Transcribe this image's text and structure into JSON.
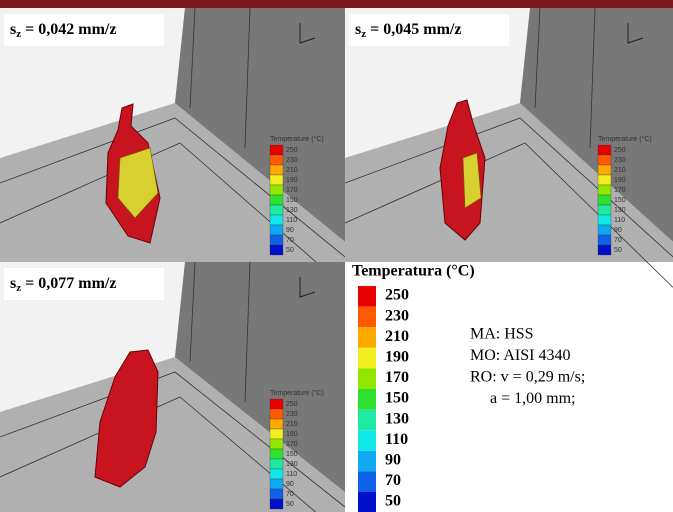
{
  "panels": [
    {
      "label": {
        "symbol": "s",
        "subscript": "z",
        "text": " = 0,042 mm/z"
      }
    },
    {
      "label": {
        "symbol": "s",
        "subscript": "z",
        "text": " = 0,045 mm/z"
      }
    },
    {
      "label": {
        "symbol": "s",
        "subscript": "z",
        "text": " = 0,077 mm/z"
      }
    }
  ],
  "panel_legend": {
    "title": "Temperature (°C)"
  },
  "legend": {
    "title": "Temperatura (°C)",
    "entries": [
      {
        "label": "250",
        "color": "#e80000"
      },
      {
        "label": "230",
        "color": "#ff5a00"
      },
      {
        "label": "210",
        "color": "#ffa800"
      },
      {
        "label": "190",
        "color": "#f0f020"
      },
      {
        "label": "170",
        "color": "#90e800"
      },
      {
        "label": "150",
        "color": "#30e030"
      },
      {
        "label": "130",
        "color": "#20e8a0"
      },
      {
        "label": "110",
        "color": "#10e8e8"
      },
      {
        "label": "90",
        "color": "#10a8f0"
      },
      {
        "label": "70",
        "color": "#1060e8"
      },
      {
        "label": "50",
        "color": "#0010c8"
      }
    ]
  },
  "parameters": [
    "MA: HSS",
    "MO: AISI 4340",
    "RO: v = 0,29 m/s;",
    "a = 1,00 mm;"
  ]
}
